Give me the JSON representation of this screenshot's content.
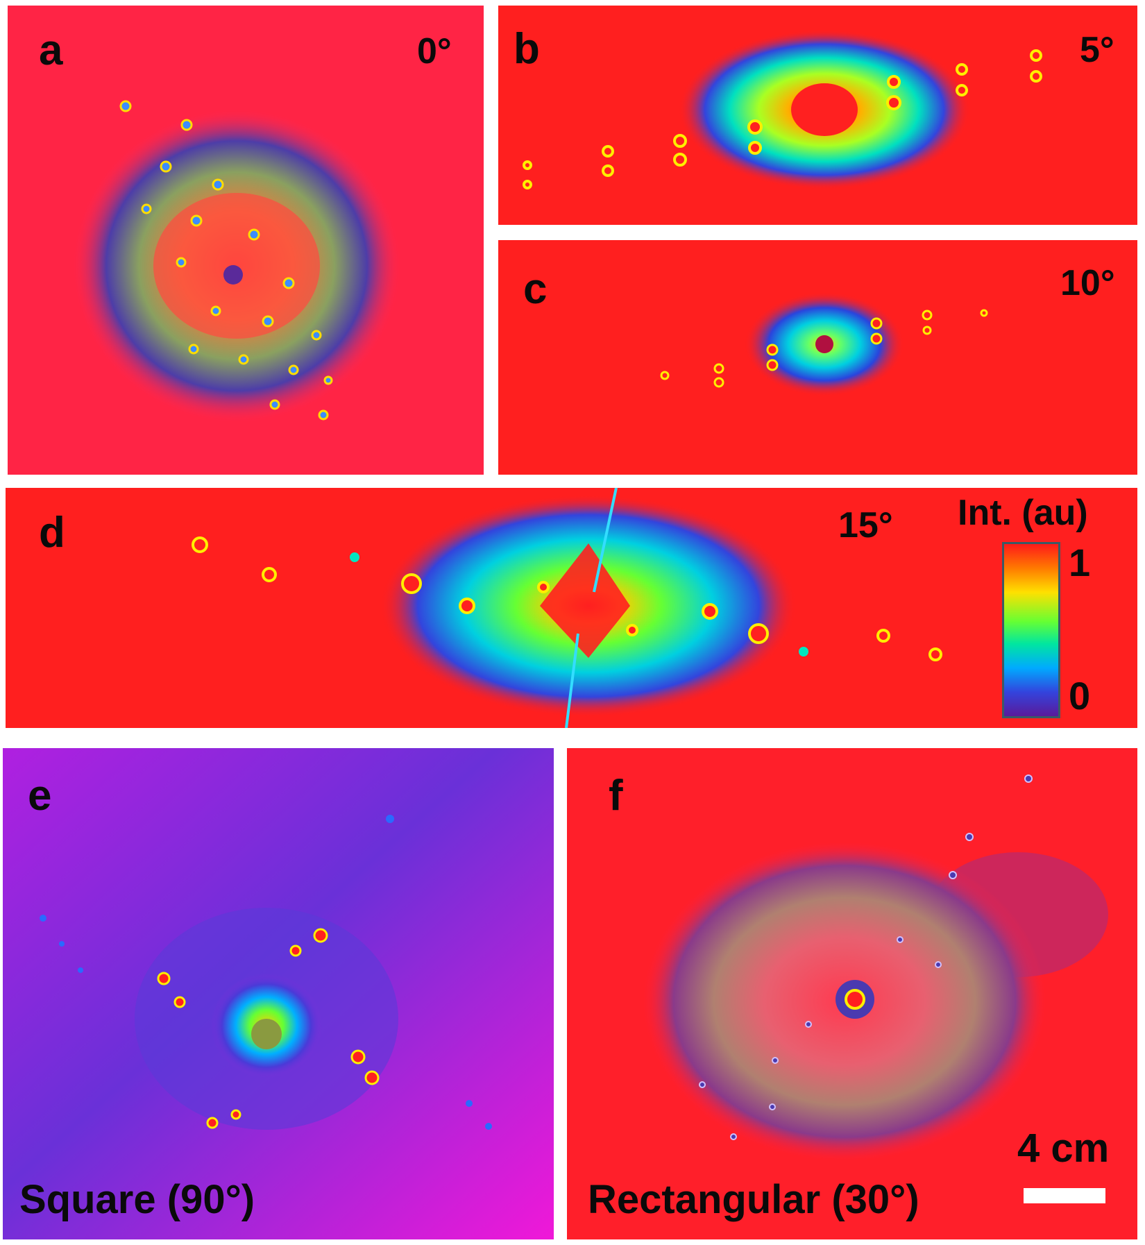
{
  "panels": {
    "a": {
      "label": "a",
      "angle": "0°"
    },
    "b": {
      "label": "b",
      "angle": "5°"
    },
    "c": {
      "label": "c",
      "angle": "10°"
    },
    "d": {
      "label": "d",
      "angle": "15°"
    },
    "e": {
      "label": "e",
      "caption": "Square (90°)"
    },
    "f": {
      "label": "f",
      "caption": "Rectangular (30°)"
    }
  },
  "colorbar": {
    "title": "Int. (au)",
    "max_label": "1",
    "min_label": "0"
  },
  "scalebar": {
    "label": "4 cm"
  },
  "colors": {
    "background_red": "#ff1f1f",
    "magenta": "#e81fe0"
  }
}
